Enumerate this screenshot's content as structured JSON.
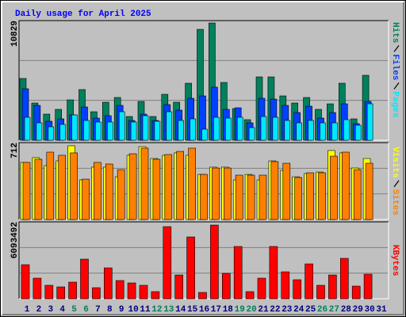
{
  "chart_data": [
    {
      "type": "bar",
      "title": "Daily usage for April 2025",
      "ylim": [
        0,
        10829
      ],
      "yticks": [
        10829
      ],
      "series": [
        {
          "name": "Hits",
          "color": "#00805c",
          "values": [
            5593,
            3370,
            2366,
            2796,
            3657,
            4589,
            2581,
            3442,
            3872,
            2151,
            3513,
            2151,
            4159,
            3442,
            5162,
            10038,
            10614,
            5234,
            2868,
            1864,
            5736,
            5736,
            4015,
            3370,
            3872,
            2796,
            3298,
            5162,
            1936,
            5879,
            0
          ]
        },
        {
          "name": "Files",
          "color": "#0040ff",
          "values": [
            4661,
            3155,
            1721,
            1936,
            2294,
            3011,
            2008,
            2223,
            3155,
            1793,
            2366,
            1793,
            3227,
            2725,
            3800,
            4015,
            4804,
            2796,
            2940,
            1577,
            3800,
            3728,
            3155,
            2510,
            3083,
            2008,
            2510,
            3298,
            1506,
            3513,
            0
          ]
        },
        {
          "name": "Pages",
          "color": "#00e8ff",
          "values": [
            2079,
            1577,
            1219,
            1434,
            2294,
            1793,
            1649,
            1649,
            2581,
            1649,
            2223,
            1721,
            2581,
            1793,
            1936,
            1004,
            2079,
            2008,
            2079,
            1147,
            2151,
            2079,
            1793,
            1577,
            1793,
            1577,
            1577,
            1864,
            1362,
            3298,
            0
          ]
        }
      ]
    },
    {
      "type": "bar",
      "ylim": [
        0,
        712
      ],
      "yticks": [
        712
      ],
      "series": [
        {
          "name": "Visits",
          "color": "#ffff00",
          "values": [
            529,
            573,
            499,
            543,
            683,
            367,
            485,
            485,
            396,
            595,
            675,
            565,
            595,
            617,
            595,
            418,
            485,
            485,
            367,
            418,
            367,
            543,
            455,
            396,
            426,
            440,
            639,
            617,
            477,
            565,
            0
          ]
        },
        {
          "name": "Sites",
          "color": "#ff8000",
          "values": [
            529,
            558,
            624,
            595,
            617,
            374,
            529,
            514,
            462,
            609,
            661,
            558,
            602,
            631,
            661,
            418,
            477,
            477,
            411,
            411,
            411,
            536,
            521,
            389,
            433,
            433,
            587,
            624,
            462,
            521,
            0
          ]
        }
      ]
    },
    {
      "type": "bar",
      "ylim": [
        0,
        6093492
      ],
      "yticks": [
        6093492
      ],
      "series": [
        {
          "name": "KBytes",
          "color": "#ff0000",
          "values": [
            2701260,
            1633320,
            1067940,
            942300,
            1319220,
            3141000,
            879480,
            2449980,
            1444860,
            1256400,
            1067940,
            565380,
            5716620,
            1884600,
            4899960,
            502560,
            5842260,
            2010240,
            4146120,
            565380,
            1633320,
            4146120,
            2135880,
            1507680,
            2764080,
            1067940,
            1884600,
            3203820,
            1005120,
            1947420,
            0
          ]
        }
      ],
      "categories": [
        "1",
        "2",
        "3",
        "4",
        "5",
        "6",
        "7",
        "8",
        "9",
        "10",
        "11",
        "12",
        "13",
        "14",
        "15",
        "16",
        "17",
        "18",
        "19",
        "20",
        "21",
        "22",
        "23",
        "24",
        "25",
        "26",
        "27",
        "28",
        "29",
        "30",
        "31"
      ],
      "category_colors": [
        "#000080",
        "#000080",
        "#000080",
        "#000080",
        "#00805c",
        "#00805c",
        "#000080",
        "#000080",
        "#000080",
        "#000080",
        "#000080",
        "#00805c",
        "#00805c",
        "#000080",
        "#000080",
        "#000080",
        "#000080",
        "#000080",
        "#00805c",
        "#00805c",
        "#000080",
        "#000080",
        "#000080",
        "#000080",
        "#000080",
        "#00805c",
        "#00805c",
        "#000080",
        "#000080",
        "#000080",
        "#000080"
      ]
    }
  ]
}
